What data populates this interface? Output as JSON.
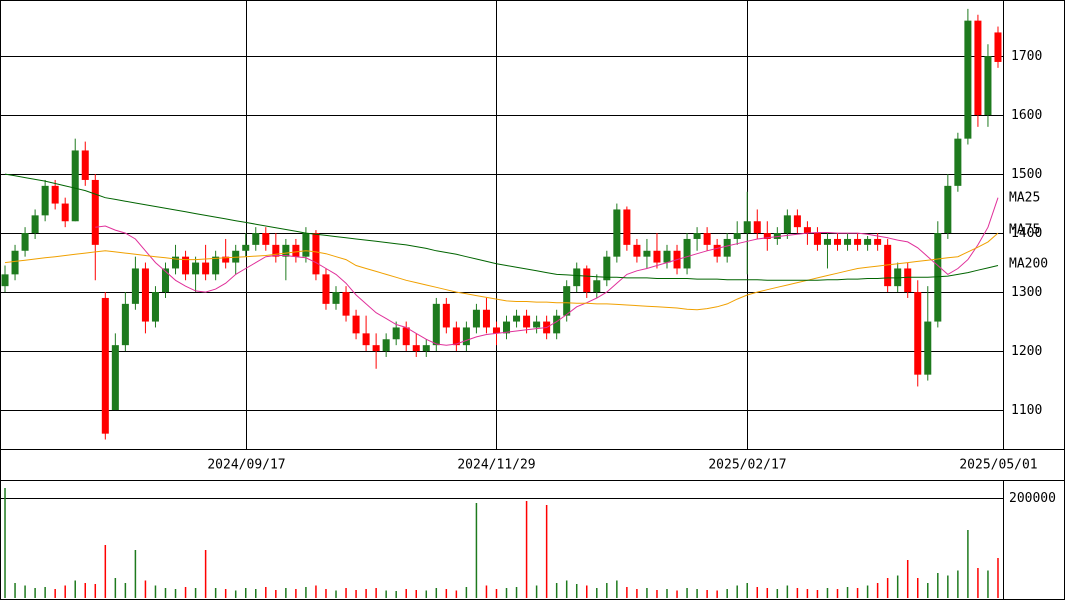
{
  "chart_data": {
    "type": "candlestick",
    "categories": [
      null,
      null,
      null,
      null,
      null,
      null,
      null,
      null,
      null,
      null,
      null,
      null,
      null,
      null,
      null,
      null,
      null,
      null,
      null,
      null,
      null,
      null,
      null,
      null,
      "2024/09/17",
      null,
      null,
      null,
      null,
      null,
      null,
      null,
      null,
      null,
      null,
      null,
      null,
      null,
      null,
      null,
      null,
      null,
      null,
      null,
      null,
      null,
      null,
      null,
      null,
      "2024/11/29",
      null,
      null,
      null,
      null,
      null,
      null,
      null,
      null,
      null,
      null,
      null,
      null,
      null,
      null,
      null,
      null,
      null,
      null,
      null,
      null,
      null,
      null,
      null,
      null,
      "2025/02/17",
      null,
      null,
      null,
      null,
      null,
      null,
      null,
      null,
      null,
      null,
      null,
      null,
      null,
      null,
      null,
      null,
      null,
      null,
      null,
      null,
      null,
      null,
      null,
      null,
      "2025/05/01"
    ],
    "open": [
      1310,
      1330,
      1370,
      1400,
      1430,
      1480,
      1450,
      1420,
      1540,
      1490,
      1290,
      1100,
      1210,
      1280,
      1340,
      1250,
      1300,
      1340,
      1360,
      1330,
      1350,
      1330,
      1360,
      1350,
      1370,
      1380,
      1400,
      1380,
      1360,
      1380,
      1360,
      1400,
      1330,
      1280,
      1300,
      1260,
      1230,
      1210,
      1200,
      1220,
      1240,
      1210,
      1200,
      1210,
      1280,
      1240,
      1210,
      1240,
      1270,
      1240,
      1230,
      1250,
      1260,
      1240,
      1250,
      1230,
      1260,
      1310,
      1340,
      1300,
      1320,
      1360,
      1440,
      1380,
      1360,
      1370,
      1350,
      1370,
      1340,
      1390,
      1400,
      1380,
      1360,
      1390,
      1400,
      1420,
      1400,
      1390,
      1400,
      1430,
      1410,
      1400,
      1380,
      1390,
      1380,
      1390,
      1380,
      1390,
      1380,
      1310,
      1340,
      1300,
      1160,
      1250,
      1400,
      1480,
      1560,
      1760,
      1600,
      1740
    ],
    "high": [
      1345,
      1380,
      1410,
      1440,
      1490,
      1490,
      1460,
      1560,
      1555,
      1500,
      1300,
      1230,
      1300,
      1360,
      1350,
      1310,
      1350,
      1380,
      1370,
      1360,
      1380,
      1370,
      1390,
      1380,
      1400,
      1410,
      1410,
      1400,
      1390,
      1390,
      1410,
      1405,
      1340,
      1310,
      1310,
      1270,
      1260,
      1230,
      1230,
      1250,
      1250,
      1230,
      1220,
      1290,
      1290,
      1250,
      1250,
      1280,
      1290,
      1250,
      1260,
      1270,
      1270,
      1260,
      1260,
      1270,
      1320,
      1350,
      1345,
      1330,
      1370,
      1450,
      1445,
      1390,
      1390,
      1400,
      1380,
      1380,
      1400,
      1410,
      1410,
      1390,
      1400,
      1420,
      1470,
      1440,
      1420,
      1410,
      1440,
      1440,
      1420,
      1410,
      1400,
      1400,
      1400,
      1400,
      1395,
      1400,
      1390,
      1350,
      1350,
      1320,
      1310,
      1420,
      1500,
      1570,
      1780,
      1770,
      1720,
      1750
    ],
    "low": [
      1300,
      1320,
      1360,
      1390,
      1420,
      1440,
      1410,
      1420,
      1480,
      1320,
      1050,
      1100,
      1200,
      1270,
      1230,
      1240,
      1290,
      1330,
      1320,
      1300,
      1320,
      1320,
      1340,
      1330,
      1360,
      1370,
      1370,
      1350,
      1320,
      1350,
      1350,
      1320,
      1270,
      1270,
      1250,
      1220,
      1200,
      1170,
      1190,
      1210,
      1200,
      1190,
      1190,
      1200,
      1230,
      1200,
      1200,
      1230,
      1230,
      1210,
      1220,
      1240,
      1230,
      1230,
      1220,
      1220,
      1250,
      1300,
      1290,
      1290,
      1310,
      1350,
      1370,
      1350,
      1340,
      1340,
      1340,
      1330,
      1330,
      1370,
      1370,
      1350,
      1350,
      1380,
      1330,
      1390,
      1370,
      1380,
      1390,
      1400,
      1380,
      1370,
      1340,
      1370,
      1370,
      1370,
      1370,
      1370,
      1300,
      1300,
      1290,
      1140,
      1150,
      1240,
      1390,
      1470,
      1550,
      1580,
      1580,
      1680
    ],
    "close": [
      1330,
      1370,
      1400,
      1430,
      1480,
      1450,
      1420,
      1540,
      1490,
      1380,
      1060,
      1210,
      1280,
      1340,
      1250,
      1300,
      1340,
      1360,
      1330,
      1350,
      1330,
      1360,
      1350,
      1370,
      1380,
      1400,
      1380,
      1360,
      1380,
      1360,
      1400,
      1330,
      1280,
      1300,
      1260,
      1230,
      1210,
      1200,
      1220,
      1240,
      1210,
      1200,
      1210,
      1280,
      1240,
      1210,
      1240,
      1270,
      1240,
      1230,
      1250,
      1260,
      1240,
      1250,
      1230,
      1260,
      1310,
      1340,
      1300,
      1320,
      1360,
      1440,
      1380,
      1360,
      1370,
      1350,
      1370,
      1340,
      1390,
      1400,
      1380,
      1360,
      1390,
      1400,
      1420,
      1400,
      1390,
      1400,
      1430,
      1410,
      1400,
      1380,
      1390,
      1380,
      1390,
      1380,
      1390,
      1380,
      1310,
      1340,
      1300,
      1160,
      1250,
      1400,
      1480,
      1560,
      1760,
      1600,
      1700,
      1690
    ],
    "up_color": "#1e7a1e",
    "down_color": "#ff0000",
    "ylim": [
      1034,
      1795
    ],
    "yticks": [
      1100,
      1200,
      1300,
      1400,
      1500,
      1600,
      1700
    ],
    "grid": true,
    "ma": [
      {
        "name": "MA25",
        "color": "#e0309a",
        "values": [
          null,
          null,
          null,
          null,
          null,
          null,
          null,
          null,
          null,
          1410,
          1412,
          1405,
          1400,
          1390,
          1370,
          1350,
          1335,
          1320,
          1310,
          1302,
          1300,
          1305,
          1315,
          1330,
          1340,
          1350,
          1360,
          1362,
          1362,
          1360,
          1358,
          1350,
          1340,
          1330,
          1315,
          1295,
          1280,
          1265,
          1255,
          1245,
          1240,
          1230,
          1220,
          1212,
          1210,
          1212,
          1218,
          1224,
          1228,
          1230,
          1232,
          1234,
          1236,
          1238,
          1240,
          1250,
          1262,
          1275,
          1282,
          1290,
          1300,
          1315,
          1330,
          1336,
          1340,
          1345,
          1350,
          1355,
          1360,
          1365,
          1370,
          1374,
          1378,
          1382,
          1386,
          1390,
          1392,
          1394,
          1396,
          1398,
          1400,
          1401,
          1401,
          1400,
          1400,
          1400,
          1398,
          1395,
          1392,
          1388,
          1385,
          1375,
          1360,
          1345,
          1330,
          1340,
          1355,
          1380,
          1410,
          1460
        ]
      },
      {
        "name": "MA75",
        "color": "#f0a000",
        "values": [
          1350,
          1352,
          1354,
          1356,
          1358,
          1360,
          1362,
          1364,
          1366,
          1368,
          1370,
          1368,
          1366,
          1364,
          1362,
          1360,
          1358,
          1356,
          1355,
          1355,
          1356,
          1357,
          1358,
          1359,
          1360,
          1361,
          1362,
          1364,
          1366,
          1368,
          1370,
          1368,
          1365,
          1360,
          1355,
          1345,
          1340,
          1335,
          1330,
          1325,
          1320,
          1316,
          1312,
          1308,
          1304,
          1300,
          1297,
          1294,
          1291,
          1288,
          1285,
          1284,
          1284,
          1283,
          1283,
          1282,
          1282,
          1281,
          1281,
          1280,
          1280,
          1279,
          1278,
          1277,
          1276,
          1275,
          1274,
          1273,
          1271,
          1270,
          1272,
          1275,
          1280,
          1288,
          1295,
          1300,
          1304,
          1308,
          1312,
          1316,
          1320,
          1324,
          1328,
          1332,
          1336,
          1340,
          1342,
          1344,
          1346,
          1348,
          1350,
          1352,
          1354,
          1356,
          1358,
          1360,
          1368,
          1376,
          1385,
          1400
        ]
      },
      {
        "name": "MA200",
        "color": "#006400",
        "values": [
          1500,
          1497,
          1494,
          1491,
          1488,
          1484,
          1480,
          1476,
          1472,
          1466,
          1460,
          1457,
          1454,
          1451,
          1448,
          1445,
          1442,
          1439,
          1436,
          1433,
          1430,
          1427,
          1424,
          1421,
          1418,
          1415,
          1412,
          1409,
          1406,
          1403,
          1400,
          1398,
          1396,
          1394,
          1392,
          1390,
          1388,
          1386,
          1384,
          1382,
          1380,
          1377,
          1374,
          1370,
          1367,
          1364,
          1360,
          1356,
          1352,
          1348,
          1345,
          1342,
          1339,
          1336,
          1333,
          1330,
          1329,
          1328,
          1327,
          1326,
          1325,
          1325,
          1324,
          1324,
          1324,
          1323,
          1323,
          1323,
          1323,
          1322,
          1322,
          1322,
          1321,
          1321,
          1321,
          1321,
          1320,
          1320,
          1320,
          1320,
          1320,
          1320,
          1321,
          1321,
          1322,
          1322,
          1323,
          1323,
          1324,
          1324,
          1325,
          1325,
          1325,
          1326,
          1327,
          1330,
          1333,
          1337,
          1341,
          1345
        ]
      }
    ],
    "volume": {
      "values": [
        220000,
        30000,
        25000,
        20000,
        22000,
        18000,
        25000,
        35000,
        30000,
        28000,
        106000,
        40000,
        30000,
        96000,
        35000,
        25000,
        20000,
        18000,
        22000,
        20000,
        96000,
        20000,
        18000,
        15000,
        20000,
        18000,
        22000,
        16000,
        20000,
        18000,
        22000,
        25000,
        18000,
        15000,
        20000,
        16000,
        18000,
        20000,
        15000,
        14000,
        18000,
        16000,
        15000,
        20000,
        18000,
        15000,
        22000,
        190000,
        25000,
        18000,
        20000,
        22000,
        194000,
        25000,
        186000,
        30000,
        35000,
        28000,
        25000,
        20000,
        30000,
        35000,
        22000,
        18000,
        20000,
        16000,
        18000,
        15000,
        20000,
        18000,
        16000,
        15000,
        18000,
        25000,
        30000,
        22000,
        20000,
        18000,
        25000,
        20000,
        18000,
        16000,
        20000,
        18000,
        22000,
        20000,
        25000,
        30000,
        40000,
        45000,
        76000,
        40000,
        30000,
        50000,
        45000,
        55000,
        136000,
        60000,
        55000,
        80000
      ],
      "ylim": [
        0,
        236000
      ],
      "yticks": [
        200000
      ]
    }
  }
}
